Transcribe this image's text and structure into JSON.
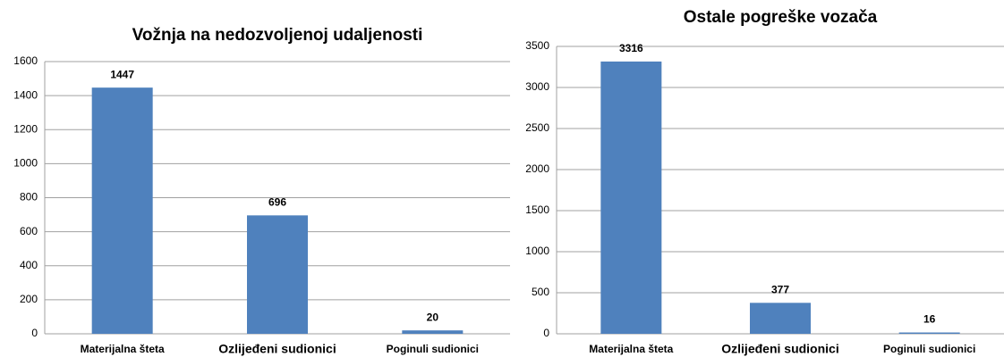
{
  "chart_data": [
    {
      "type": "bar",
      "title": "Vožnja na nedozvoljenoj udaljenosti",
      "categories": [
        "Materijalna šteta",
        "Ozlijeđeni sudionici",
        "Poginuli sudionici"
      ],
      "values": [
        1447,
        696,
        20
      ],
      "color": "#4f81bd",
      "ylim": [
        0,
        1600
      ],
      "yticks": [
        0,
        200,
        400,
        600,
        800,
        1000,
        1200,
        1400,
        1600
      ],
      "grid": true
    },
    {
      "type": "bar",
      "title": "Ostale pogreške vozača",
      "categories": [
        "Materijalna šteta",
        "Ozlijeđeni sudionici",
        "Poginuli sudionici"
      ],
      "values": [
        3316,
        377,
        16
      ],
      "color": "#4f81bd",
      "ylim": [
        0,
        3500
      ],
      "yticks": [
        0,
        500,
        1000,
        1500,
        2000,
        2500,
        3000,
        3500
      ],
      "grid": true
    }
  ]
}
